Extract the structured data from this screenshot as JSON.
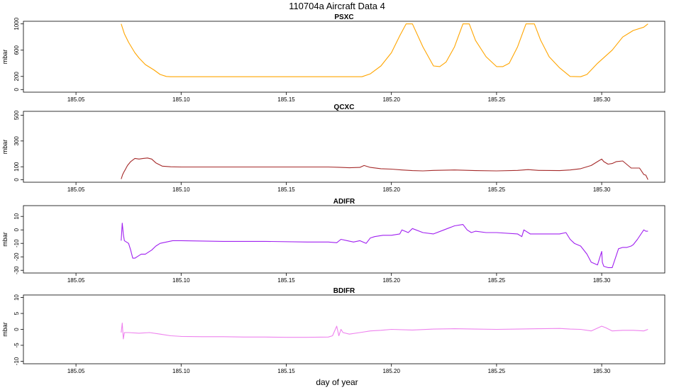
{
  "title": "110704a   Aircraft Data 4",
  "xlabel": "day of year",
  "chart_data": [
    {
      "type": "line",
      "title": "PSXC",
      "ylabel": "mbar",
      "color": "#FFA500",
      "xlim": [
        185.025,
        185.33
      ],
      "ylim": [
        -40,
        1040
      ],
      "xticks": [
        185.05,
        185.1,
        185.15,
        185.2,
        185.25,
        185.3
      ],
      "xtick_labels": [
        "185.05",
        "185.10",
        "185.15",
        "185.20",
        "185.25",
        "185.30"
      ],
      "yticks": [
        0,
        200,
        600,
        1000
      ],
      "ytick_labels": [
        "0",
        "200",
        "600",
        "1000"
      ],
      "series": [
        {
          "x": [
            185.0715,
            185.073,
            185.075,
            185.078,
            185.08,
            185.083,
            185.087,
            185.09,
            185.093,
            185.095,
            185.12,
            185.15,
            185.17,
            185.186,
            185.19,
            185.195,
            185.2,
            185.204,
            185.207,
            185.21,
            185.215,
            185.22,
            185.223,
            185.226,
            185.23,
            185.234,
            185.237,
            185.24,
            185.245,
            185.25,
            185.253,
            185.256,
            185.26,
            185.264,
            185.268,
            185.271,
            185.275,
            185.28,
            185.285,
            185.29,
            185.293,
            185.298,
            185.305,
            185.31,
            185.315,
            185.32,
            185.322
          ],
          "y": [
            1000,
            850,
            720,
            560,
            480,
            380,
            300,
            230,
            200,
            195,
            195,
            195,
            195,
            195,
            240,
            360,
            560,
            820,
            1000,
            1000,
            650,
            360,
            350,
            420,
            650,
            1000,
            1000,
            750,
            500,
            350,
            350,
            400,
            650,
            1000,
            1000,
            750,
            500,
            330,
            200,
            195,
            230,
            400,
            600,
            800,
            900,
            950,
            1000
          ]
        }
      ]
    },
    {
      "type": "line",
      "title": "QCXC",
      "ylabel": "mbar",
      "color": "#A52A2A",
      "xlim": [
        185.025,
        185.33
      ],
      "ylim": [
        -20,
        530
      ],
      "xticks": [
        185.05,
        185.1,
        185.15,
        185.2,
        185.25,
        185.3
      ],
      "xtick_labels": [
        "185.05",
        "185.10",
        "185.15",
        "185.20",
        "185.25",
        "185.30"
      ],
      "yticks": [
        0,
        100,
        300,
        500
      ],
      "ytick_labels": [
        "0",
        "100",
        "300",
        "500"
      ],
      "series": [
        {
          "x": [
            185.0715,
            185.0722,
            185.0728,
            185.0735,
            185.0745,
            185.076,
            185.078,
            185.08,
            185.082,
            185.084,
            185.086,
            185.088,
            185.091,
            185.095,
            185.1,
            185.11,
            185.12,
            185.13,
            185.14,
            185.15,
            185.16,
            185.17,
            185.175,
            185.18,
            185.185,
            185.187,
            185.19,
            185.195,
            185.2,
            185.205,
            185.21,
            185.215,
            185.22,
            185.23,
            185.24,
            185.25,
            185.26,
            185.265,
            185.27,
            185.28,
            185.285,
            185.29,
            185.295,
            185.298,
            185.3,
            185.301,
            185.303,
            185.305,
            185.307,
            185.31,
            185.314,
            185.318,
            185.32,
            185.321,
            185.322
          ],
          "y": [
            5,
            40,
            60,
            80,
            110,
            140,
            165,
            160,
            165,
            168,
            160,
            130,
            105,
            100,
            98,
            98,
            98,
            98,
            98,
            98,
            98,
            98,
            96,
            92,
            95,
            110,
            95,
            85,
            82,
            75,
            70,
            68,
            72,
            75,
            70,
            68,
            72,
            78,
            72,
            70,
            75,
            85,
            110,
            140,
            160,
            140,
            120,
            125,
            140,
            145,
            90,
            90,
            40,
            35,
            0
          ]
        }
      ]
    },
    {
      "type": "line",
      "title": "ADIFR",
      "ylabel": "mbar",
      "color": "#A020F0",
      "xlim": [
        185.025,
        185.33
      ],
      "ylim": [
        -32,
        18
      ],
      "xticks": [
        185.05,
        185.1,
        185.15,
        185.2,
        185.25,
        185.3
      ],
      "xtick_labels": [
        "185.05",
        "185.10",
        "185.15",
        "185.20",
        "185.25",
        "185.30"
      ],
      "yticks": [
        -30,
        -20,
        -10,
        0,
        10
      ],
      "ytick_labels": [
        "-30",
        "-20",
        "-10",
        "0",
        "10"
      ],
      "series": [
        {
          "x": [
            185.0715,
            185.072,
            185.0725,
            185.073,
            185.074,
            185.075,
            185.076,
            185.077,
            185.078,
            185.079,
            185.081,
            185.083,
            185.085,
            185.086,
            185.088,
            185.09,
            185.093,
            185.096,
            185.1,
            185.12,
            185.14,
            185.16,
            185.17,
            185.174,
            185.176,
            185.179,
            185.182,
            185.185,
            185.188,
            185.19,
            185.192,
            185.196,
            185.2,
            185.204,
            185.205,
            185.208,
            185.21,
            185.215,
            185.22,
            185.225,
            185.23,
            185.234,
            185.236,
            185.238,
            185.24,
            185.245,
            185.25,
            185.26,
            185.262,
            185.263,
            185.266,
            185.27,
            185.275,
            185.28,
            185.283,
            185.285,
            185.287,
            185.29,
            185.293,
            185.295,
            185.298,
            185.3,
            185.3003,
            185.301,
            185.303,
            185.305,
            185.308,
            185.31,
            185.312,
            185.314,
            185.315,
            185.317,
            185.32,
            185.321,
            185.322
          ],
          "y": [
            -8,
            5,
            -3,
            -8,
            -9,
            -10,
            -15,
            -21,
            -21,
            -20,
            -18,
            -18,
            -16,
            -15,
            -12,
            -10,
            -9,
            -8,
            -8,
            -8.5,
            -8.5,
            -9,
            -9,
            -9.5,
            -7,
            -8,
            -9,
            -8,
            -10,
            -6,
            -5,
            -4,
            -4,
            -3,
            0,
            -2,
            1,
            -2,
            -3,
            0,
            3,
            4,
            0,
            -2,
            -1,
            -2,
            -2,
            -3,
            -5,
            0,
            -3,
            -3,
            -3,
            -3,
            -2,
            -7,
            -10,
            -12,
            -18,
            -24,
            -26,
            -16,
            -24,
            -27,
            -28,
            -28,
            -14,
            -13,
            -13,
            -12,
            -11,
            -7,
            0,
            -1,
            -1
          ]
        }
      ]
    },
    {
      "type": "line",
      "title": "BDIFR",
      "ylabel": "mbar",
      "color": "#EE82EE",
      "xlim": [
        185.025,
        185.33
      ],
      "ylim": [
        -10.8,
        10.8
      ],
      "xticks": [
        185.05,
        185.1,
        185.15,
        185.2,
        185.25,
        185.3
      ],
      "xtick_labels": [
        "185.05",
        "185.10",
        "185.15",
        "185.20",
        "185.25",
        "185.30"
      ],
      "yticks": [
        -10,
        -5,
        0,
        5,
        10
      ],
      "ytick_labels": [
        "-10",
        "-5",
        "0",
        "5",
        "10"
      ],
      "series": [
        {
          "x": [
            185.0715,
            185.072,
            185.0725,
            185.073,
            185.075,
            185.08,
            185.085,
            185.09,
            185.095,
            185.1,
            185.11,
            185.12,
            185.13,
            185.14,
            185.15,
            185.16,
            185.17,
            185.172,
            185.174,
            185.175,
            185.176,
            185.177,
            185.18,
            185.185,
            185.19,
            185.195,
            185.2,
            185.21,
            185.22,
            185.23,
            185.24,
            185.25,
            185.26,
            185.27,
            185.28,
            185.285,
            185.29,
            185.295,
            185.3,
            185.302,
            185.305,
            185.31,
            185.315,
            185.32,
            185.322
          ],
          "y": [
            -1,
            2,
            -3,
            -1,
            -1,
            -1.2,
            -1,
            -1.5,
            -2,
            -2.2,
            -2.3,
            -2.3,
            -2.4,
            -2.4,
            -2.5,
            -2.5,
            -2.4,
            -2,
            1,
            -2,
            0,
            -1,
            -1.5,
            -1,
            -0.5,
            -0.3,
            0,
            -0.2,
            0.1,
            0.2,
            0.1,
            0,
            0.1,
            0.2,
            0.3,
            0.1,
            0,
            -0.5,
            1,
            0.5,
            -0.5,
            -0.3,
            -0.3,
            -0.5,
            0
          ]
        }
      ]
    }
  ]
}
